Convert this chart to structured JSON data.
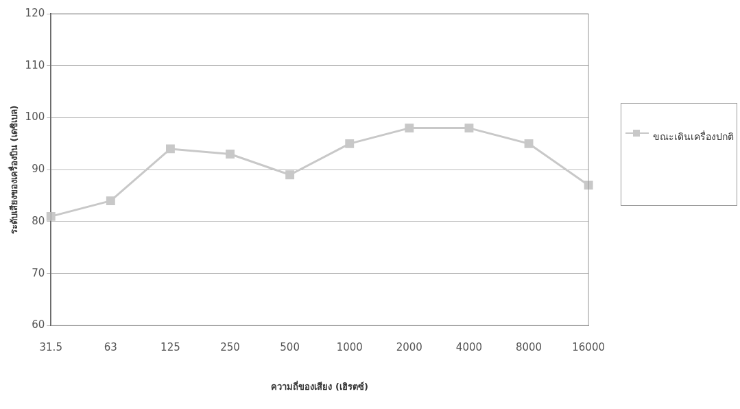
{
  "chart_data": {
    "type": "line",
    "xlabel": "ความถี่ของเสียง (เฮิรตซ์)",
    "ylabel": "ระดับเสียงของเครื่องบิน (เดซิเบล)",
    "categories": [
      "31.5",
      "63",
      "125",
      "250",
      "500",
      "1000",
      "2000",
      "4000",
      "8000",
      "16000"
    ],
    "series": [
      {
        "name": "ขณะเดินเครื่องปกติ",
        "color": "#c8c8c8",
        "values": [
          81,
          84,
          94,
          93,
          89,
          95,
          98,
          98,
          95,
          87
        ]
      }
    ],
    "ylim": [
      60,
      120
    ],
    "yticks": [
      60,
      70,
      80,
      90,
      100,
      110,
      120
    ],
    "grid": "y",
    "legend": "right",
    "marker": "square",
    "line_style": "solid"
  }
}
